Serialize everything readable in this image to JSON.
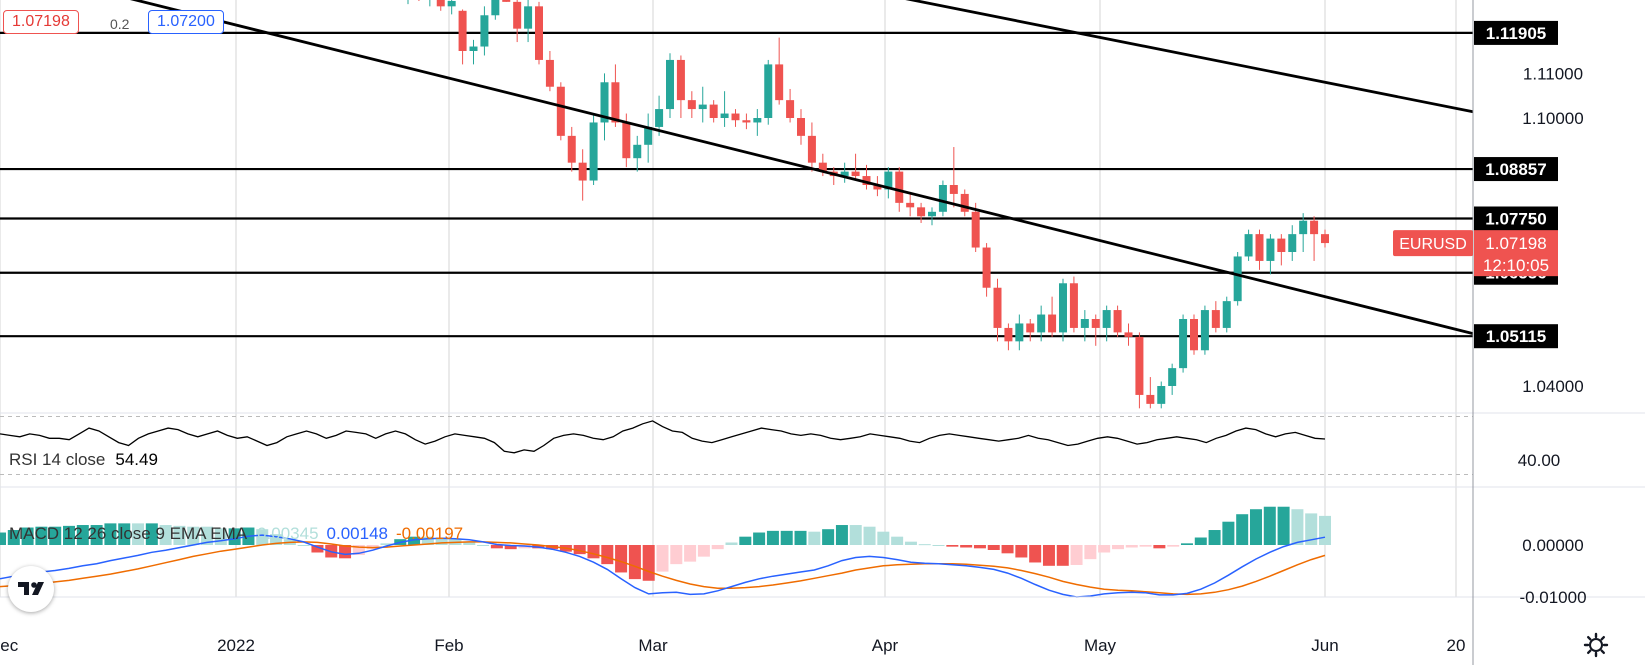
{
  "header": {
    "sell_price": "1.07198",
    "spread": "0.2",
    "buy_price": "1.07200"
  },
  "symbol": {
    "name": "EURUSD",
    "last_price": "1.07198",
    "countdown": "12:10:05"
  },
  "indicators": {
    "rsi": {
      "label": "RSI 14 close",
      "value": "54.49"
    },
    "macd": {
      "label": "MACD 12 26 close 9 EMA EMA",
      "histogram": "0.00345",
      "macd": "0.00148",
      "signal": "-0.00197"
    }
  },
  "colors": {
    "up": "#26a69a",
    "down": "#ef5350",
    "up_light": "#b2dfdb",
    "down_light": "#ffcdd2",
    "macd_line": "#2962ff",
    "signal_line": "#ef6c00",
    "badge": "#000000",
    "symbol_badge": "#ef5350"
  },
  "icons": {
    "logo": "tradingview-logo-icon",
    "settings": "gear-icon"
  },
  "chart_data": [
    {
      "type": "candlestick",
      "symbol": "EURUSD",
      "timeframe": "1D",
      "y_axis": {
        "ticks": [
          1.04,
          1.1,
          1.11
        ],
        "range": [
          1.03,
          1.128
        ]
      },
      "x_axis": {
        "ticks": [
          "Dec",
          "2022",
          "Feb",
          "Mar",
          "Apr",
          "May",
          "Jun",
          "20"
        ]
      },
      "horizontal_levels": [
        1.11905,
        1.08857,
        1.0775,
        1.06536,
        1.05115
      ],
      "level_labels": [
        "1.11905",
        "1.08857",
        "1.07750",
        "1.06536",
        "1.05115"
      ],
      "trendlines": [
        {
          "from": [
            "Dec",
            1.134
          ],
          "to": [
            "Jun",
            1.06
          ],
          "description": "lower descending trendline"
        },
        {
          "from": [
            "Mar",
            1.138
          ],
          "to": [
            "Jun",
            1.108
          ],
          "description": "upper descending trendline"
        }
      ],
      "candles_ohlc": [
        [
          1.128,
          1.131,
          1.1255,
          1.13
        ],
        [
          1.13,
          1.131,
          1.1262,
          1.127
        ],
        [
          1.127,
          1.1295,
          1.125,
          1.1285
        ],
        [
          1.1285,
          1.13,
          1.124,
          1.125
        ],
        [
          1.125,
          1.1275,
          1.1232,
          1.1262
        ],
        [
          1.124,
          1.1243,
          1.112,
          1.115
        ],
        [
          1.115,
          1.1175,
          1.112,
          1.116
        ],
        [
          1.116,
          1.125,
          1.114,
          1.123
        ],
        [
          1.123,
          1.129,
          1.122,
          1.127
        ],
        [
          1.13,
          1.14,
          1.126,
          1.126
        ],
        [
          1.126,
          1.127,
          1.117,
          1.12
        ],
        [
          1.12,
          1.129,
          1.117,
          1.125
        ],
        [
          1.125,
          1.126,
          1.112,
          1.113
        ],
        [
          1.113,
          1.115,
          1.106,
          1.107
        ],
        [
          1.107,
          1.108,
          1.095,
          1.096
        ],
        [
          1.096,
          1.098,
          1.088,
          1.09
        ],
        [
          1.09,
          1.093,
          1.0815,
          1.086
        ],
        [
          1.086,
          1.101,
          1.085,
          1.099
        ],
        [
          1.099,
          1.11,
          1.095,
          1.108
        ],
        [
          1.108,
          1.112,
          1.098,
          1.099
        ],
        [
          1.099,
          1.101,
          1.089,
          1.091
        ],
        [
          1.091,
          1.096,
          1.088,
          1.094
        ],
        [
          1.094,
          1.101,
          1.09,
          1.098
        ],
        [
          1.098,
          1.105,
          1.096,
          1.102
        ],
        [
          1.102,
          1.1145,
          1.1,
          1.113
        ],
        [
          1.113,
          1.114,
          1.1,
          1.104
        ],
        [
          1.104,
          1.106,
          1.1,
          1.102
        ],
        [
          1.102,
          1.107,
          1.099,
          1.103
        ],
        [
          1.103,
          1.104,
          1.099,
          1.1
        ],
        [
          1.1,
          1.106,
          1.098,
          1.101
        ],
        [
          1.101,
          1.102,
          1.098,
          1.0995
        ],
        [
          1.0995,
          1.101,
          1.0975,
          1.099
        ],
        [
          1.099,
          1.102,
          1.096,
          1.1
        ],
        [
          1.1,
          1.113,
          1.0985,
          1.112
        ],
        [
          1.112,
          1.118,
          1.103,
          1.104
        ],
        [
          1.104,
          1.1065,
          1.099,
          1.1
        ],
        [
          1.1,
          1.102,
          1.094,
          1.096
        ],
        [
          1.096,
          1.099,
          1.088,
          1.09
        ],
        [
          1.09,
          1.092,
          1.087,
          1.088
        ],
        [
          1.088,
          1.089,
          1.085,
          1.087
        ],
        [
          1.087,
          1.09,
          1.0855,
          1.088
        ],
        [
          1.088,
          1.092,
          1.086,
          1.087
        ],
        [
          1.087,
          1.0895,
          1.084,
          1.085
        ],
        [
          1.085,
          1.087,
          1.0825,
          1.084
        ],
        [
          1.084,
          1.089,
          1.082,
          1.088
        ],
        [
          1.088,
          1.089,
          1.079,
          1.081
        ],
        [
          1.081,
          1.083,
          1.078,
          1.08
        ],
        [
          1.08,
          1.081,
          1.0765,
          1.078
        ],
        [
          1.078,
          1.08,
          1.076,
          1.079
        ],
        [
          1.079,
          1.086,
          1.078,
          1.085
        ],
        [
          1.085,
          1.0935,
          1.08,
          1.083
        ],
        [
          1.083,
          1.084,
          1.078,
          1.079
        ],
        [
          1.079,
          1.081,
          1.07,
          1.071
        ],
        [
          1.071,
          1.072,
          1.06,
          1.062
        ],
        [
          1.062,
          1.064,
          1.05,
          1.053
        ],
        [
          1.053,
          1.054,
          1.048,
          1.05
        ],
        [
          1.05,
          1.056,
          1.048,
          1.054
        ],
        [
          1.054,
          1.055,
          1.05,
          1.052
        ],
        [
          1.052,
          1.058,
          1.05,
          1.056
        ],
        [
          1.056,
          1.06,
          1.051,
          1.052
        ],
        [
          1.052,
          1.064,
          1.05,
          1.063
        ],
        [
          1.063,
          1.0645,
          1.052,
          1.053
        ],
        [
          1.053,
          1.057,
          1.05,
          1.055
        ],
        [
          1.055,
          1.056,
          1.049,
          1.053
        ],
        [
          1.053,
          1.058,
          1.05,
          1.057
        ],
        [
          1.057,
          1.058,
          1.051,
          1.052
        ],
        [
          1.052,
          1.054,
          1.049,
          1.051
        ],
        [
          1.051,
          1.052,
          1.035,
          1.038
        ],
        [
          1.038,
          1.042,
          1.035,
          1.036
        ],
        [
          1.036,
          1.041,
          1.035,
          1.04
        ],
        [
          1.04,
          1.045,
          1.038,
          1.044
        ],
        [
          1.044,
          1.056,
          1.043,
          1.055
        ],
        [
          1.055,
          1.056,
          1.047,
          1.048
        ],
        [
          1.048,
          1.058,
          1.047,
          1.057
        ],
        [
          1.057,
          1.059,
          1.052,
          1.053
        ],
        [
          1.053,
          1.06,
          1.052,
          1.059
        ],
        [
          1.059,
          1.07,
          1.058,
          1.069
        ],
        [
          1.069,
          1.075,
          1.068,
          1.074
        ],
        [
          1.074,
          1.075,
          1.066,
          1.068
        ],
        [
          1.068,
          1.074,
          1.065,
          1.073
        ],
        [
          1.073,
          1.074,
          1.067,
          1.07
        ],
        [
          1.07,
          1.076,
          1.068,
          1.074
        ],
        [
          1.074,
          1.0787,
          1.07,
          1.077
        ],
        [
          1.077,
          1.078,
          1.068,
          1.074
        ],
        [
          1.074,
          1.075,
          1.071,
          1.072
        ]
      ]
    },
    {
      "type": "line",
      "name": "RSI 14 close",
      "y_ticks": [
        40.0
      ],
      "current": 54.49,
      "values": [
        58,
        57,
        56,
        58,
        57,
        55,
        55,
        54,
        58,
        62,
        60,
        56,
        52,
        50,
        55,
        58,
        60,
        62,
        61,
        58,
        56,
        58,
        60,
        57,
        55,
        56,
        53,
        50,
        52,
        56,
        58,
        60,
        58,
        55,
        57,
        60,
        59,
        58,
        55,
        58,
        60,
        58,
        54,
        51,
        53,
        56,
        58,
        57,
        56,
        55,
        52,
        46,
        45,
        47,
        46,
        50,
        55,
        57,
        58,
        57,
        55,
        54,
        56,
        60,
        62,
        65,
        67,
        63,
        60,
        59,
        55,
        53,
        52,
        54,
        56,
        58,
        60,
        62,
        61,
        60,
        58,
        57,
        58,
        57,
        55,
        54,
        55,
        56,
        58,
        57,
        56,
        55,
        53,
        52,
        55,
        57,
        58,
        57,
        56,
        55,
        54,
        53,
        54,
        55,
        57,
        55,
        54,
        52,
        50,
        51,
        53,
        55,
        56,
        55,
        53,
        51,
        52,
        54,
        55,
        56,
        55,
        54,
        52,
        55,
        57,
        60,
        62,
        61,
        58,
        56,
        58,
        59,
        57,
        55,
        54.49
      ]
    },
    {
      "type": "bar+line",
      "name": "MACD 12 26 close 9 EMA EMA",
      "y_ticks": [
        0.0,
        -0.01
      ],
      "histogram_current": 0.00345,
      "macd_current": 0.00148,
      "signal_current": -0.00197,
      "macd": [
        -0.0065,
        -0.006,
        -0.0055,
        -0.0052,
        -0.0049,
        -0.0045,
        -0.004,
        -0.0036,
        -0.003,
        -0.0025,
        -0.002,
        -0.0014,
        -0.001,
        -0.0005,
        0.0,
        0.0005,
        0.0008,
        0.0012,
        0.0017,
        0.0019,
        0.0016,
        0.0012,
        0.0006,
        -0.0004,
        -0.0013,
        -0.0018,
        -0.0016,
        -0.001,
        -0.0002,
        0.0005,
        0.001,
        0.0012,
        0.0013,
        0.0012,
        0.001,
        0.0006,
        0.0001,
        -0.0001,
        -0.0002,
        -0.0004,
        -0.0008,
        -0.0014,
        -0.0022,
        -0.0033,
        -0.0047,
        -0.0065,
        -0.0082,
        -0.0094,
        -0.0092,
        -0.0091,
        -0.0095,
        -0.0094,
        -0.0088,
        -0.008,
        -0.0072,
        -0.0065,
        -0.006,
        -0.0056,
        -0.0052,
        -0.0048,
        -0.004,
        -0.003,
        -0.0024,
        -0.0022,
        -0.0024,
        -0.0028,
        -0.0033,
        -0.0035,
        -0.0036,
        -0.0038,
        -0.004,
        -0.0043,
        -0.0047,
        -0.0054,
        -0.0064,
        -0.0076,
        -0.0087,
        -0.0095,
        -0.01,
        -0.0098,
        -0.0094,
        -0.0092,
        -0.0091,
        -0.0092,
        -0.0096,
        -0.0096,
        -0.0093,
        -0.0085,
        -0.0073,
        -0.0058,
        -0.0042,
        -0.0027,
        -0.0014,
        -0.0003,
        0.0005,
        0.001,
        0.0015
      ],
      "signal": [
        -0.008,
        -0.0078,
        -0.0076,
        -0.0074,
        -0.0071,
        -0.0068,
        -0.0064,
        -0.006,
        -0.0056,
        -0.0051,
        -0.0046,
        -0.004,
        -0.0034,
        -0.0028,
        -0.0022,
        -0.0017,
        -0.0012,
        -0.0008,
        -0.0004,
        0.0,
        0.0003,
        0.0005,
        0.0006,
        0.0005,
        0.0002,
        -0.0002,
        -0.0004,
        -0.0005,
        -0.0004,
        -0.0002,
        0.0,
        0.0002,
        0.0004,
        0.0005,
        0.0006,
        0.0006,
        0.0005,
        0.0004,
        0.0002,
        0.0,
        -0.0003,
        -0.0006,
        -0.0011,
        -0.0017,
        -0.0024,
        -0.0032,
        -0.0041,
        -0.0051,
        -0.006,
        -0.0068,
        -0.0075,
        -0.008,
        -0.0083,
        -0.0083,
        -0.0082,
        -0.008,
        -0.0077,
        -0.0073,
        -0.0069,
        -0.0064,
        -0.0059,
        -0.0054,
        -0.0048,
        -0.0044,
        -0.004,
        -0.0038,
        -0.0037,
        -0.0036,
        -0.0036,
        -0.0036,
        -0.0037,
        -0.0039,
        -0.0041,
        -0.0044,
        -0.0049,
        -0.0055,
        -0.0062,
        -0.007,
        -0.0076,
        -0.0081,
        -0.0085,
        -0.0087,
        -0.0088,
        -0.009,
        -0.0092,
        -0.0094,
        -0.0095,
        -0.0094,
        -0.0091,
        -0.0086,
        -0.0079,
        -0.007,
        -0.006,
        -0.0049,
        -0.0038,
        -0.0028,
        -0.002
      ]
    }
  ]
}
